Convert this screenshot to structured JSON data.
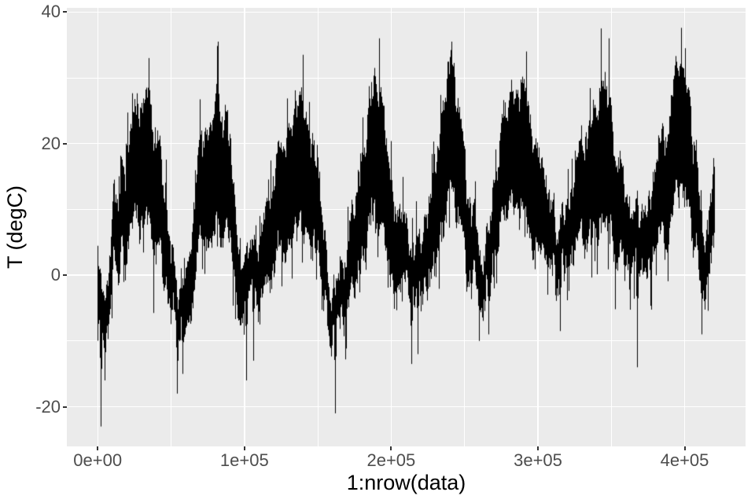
{
  "chart_data": {
    "type": "line",
    "title": "",
    "xlabel": "1:nrow(data)",
    "ylabel": "T (degC)",
    "series_name": "T",
    "n_points_approx": 420500,
    "n_seasonal_cycles": 8,
    "cycle_period_approx": 52500,
    "grid": "on",
    "legend": "none",
    "xlim_data": [
      0,
      420500
    ],
    "ylim_data": [
      -23,
      37.6
    ],
    "axis_expand_fraction": 0.05,
    "x_ticks": [
      {
        "value": 0,
        "label": "0e+00"
      },
      {
        "value": 100000,
        "label": "1e+05"
      },
      {
        "value": 200000,
        "label": "2e+05"
      },
      {
        "value": 300000,
        "label": "3e+05"
      },
      {
        "value": 400000,
        "label": "4e+05"
      }
    ],
    "x_minor_ticks": [
      50000,
      150000,
      250000,
      350000
    ],
    "y_ticks": [
      {
        "value": 40,
        "label": "40"
      },
      {
        "value": 20,
        "label": "20"
      },
      {
        "value": 0,
        "label": "0"
      },
      {
        "value": -20,
        "label": "-20"
      }
    ],
    "y_minor_ticks": [
      30,
      10,
      -10
    ],
    "seasonal_mean_anchors": [
      [
        0,
        1
      ],
      [
        2000,
        -2
      ],
      [
        6000,
        0
      ],
      [
        15000,
        7
      ],
      [
        28000,
        16
      ],
      [
        35000,
        19
      ],
      [
        45000,
        10
      ],
      [
        52000,
        0
      ],
      [
        56000,
        -3
      ],
      [
        66000,
        8
      ],
      [
        75000,
        16
      ],
      [
        82000,
        20
      ],
      [
        92000,
        10
      ],
      [
        100000,
        -1
      ],
      [
        105000,
        -2
      ],
      [
        118000,
        9
      ],
      [
        130000,
        16
      ],
      [
        139000,
        18.5
      ],
      [
        150000,
        9
      ],
      [
        158000,
        -1
      ],
      [
        163000,
        -3
      ],
      [
        175000,
        8
      ],
      [
        185000,
        17
      ],
      [
        192000,
        20
      ],
      [
        203000,
        9
      ],
      [
        213000,
        -1
      ],
      [
        220000,
        1
      ],
      [
        230000,
        11
      ],
      [
        241000,
        20.5
      ],
      [
        250000,
        11
      ],
      [
        258000,
        1
      ],
      [
        263000,
        -1
      ],
      [
        275000,
        10
      ],
      [
        285000,
        16
      ],
      [
        292000,
        19
      ],
      [
        303000,
        9
      ],
      [
        313000,
        0
      ],
      [
        318000,
        1
      ],
      [
        330000,
        10
      ],
      [
        340000,
        19
      ],
      [
        345000,
        21
      ],
      [
        356000,
        10
      ],
      [
        365000,
        0
      ],
      [
        370000,
        0
      ],
      [
        382000,
        10
      ],
      [
        392000,
        17
      ],
      [
        399000,
        19
      ],
      [
        408000,
        10
      ],
      [
        414000,
        1
      ],
      [
        420500,
        4
      ]
    ],
    "extreme_spikes": {
      "high": [
        [
          34900,
          33
        ],
        [
          81700,
          35.5
        ],
        [
          139800,
          33.5
        ],
        [
          191900,
          36
        ],
        [
          240900,
          35.5
        ],
        [
          291900,
          34
        ],
        [
          343000,
          37.5
        ],
        [
          348000,
          36
        ],
        [
          400000,
          34.5
        ]
      ],
      "low": [
        [
          2000,
          -23
        ],
        [
          4500,
          -16
        ],
        [
          54000,
          -18
        ],
        [
          57500,
          -15
        ],
        [
          101000,
          -16
        ],
        [
          106000,
          -13
        ],
        [
          161500,
          -21
        ],
        [
          213500,
          -13.5
        ],
        [
          218000,
          -12
        ],
        [
          260000,
          -10
        ],
        [
          266000,
          -9
        ],
        [
          315000,
          -8.5
        ],
        [
          367500,
          -14
        ],
        [
          411500,
          -9
        ]
      ]
    },
    "texture": {
      "seed": 7,
      "daily_amp_base": 2.0,
      "daily_amp_per_degree": 0.31,
      "fast_noise_amp": 2.2,
      "fast_noise_decay": 0.85,
      "slow_noise_amp": 0.9,
      "slow_noise_decay": 0.97,
      "down_needle_prob": 0.1,
      "down_needle_max": 5,
      "up_needle_prob": 0.07,
      "up_needle_max": 4
    },
    "style": {
      "outer_bg": "#FFFFFF",
      "panel_bg": "#EBEBEB",
      "gridline_color": "#FFFFFF",
      "series_color": "#000000",
      "tick_label_color": "#4D4D4D",
      "tick_mark_color": "#333333",
      "axis_title_color": "#000000"
    }
  }
}
